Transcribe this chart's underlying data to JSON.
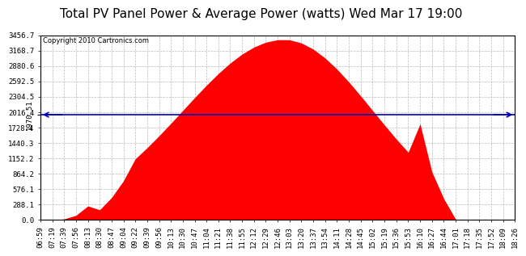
{
  "title": "Total PV Panel Power & Average Power (watts) Wed Mar 17 19:00",
  "copyright": "Copyright 2010 Cartronics.com",
  "average_value": 1970.51,
  "ymax": 3456.7,
  "ymin": 0.0,
  "yticks": [
    0.0,
    288.1,
    576.1,
    864.2,
    1152.2,
    1440.3,
    1728.4,
    2016.4,
    2304.5,
    2592.5,
    2880.6,
    3168.7,
    3456.7
  ],
  "ytick_labels": [
    "0.0",
    "288.1",
    "576.1",
    "864.2",
    "1152.2",
    "1440.3",
    "1728.4",
    "2016.4",
    "2304.5",
    "2592.5",
    "2880.6",
    "3168.7",
    "3456.7"
  ],
  "xtick_labels": [
    "06:59",
    "07:19",
    "07:39",
    "07:56",
    "08:13",
    "08:30",
    "08:47",
    "09:04",
    "09:22",
    "09:39",
    "09:56",
    "10:13",
    "10:30",
    "10:47",
    "11:04",
    "11:21",
    "11:38",
    "11:55",
    "12:12",
    "12:29",
    "12:46",
    "13:03",
    "13:20",
    "13:37",
    "13:54",
    "14:11",
    "14:28",
    "14:45",
    "15:02",
    "15:19",
    "15:36",
    "15:53",
    "16:10",
    "16:27",
    "16:44",
    "17:01",
    "17:18",
    "17:35",
    "17:52",
    "18:09",
    "18:26"
  ],
  "fill_color": "#FF0000",
  "line_color": "#0000BB",
  "background_color": "#FFFFFF",
  "grid_color": "#BBBBBB",
  "title_fontsize": 11,
  "copyright_fontsize": 6,
  "tick_fontsize": 6.5
}
